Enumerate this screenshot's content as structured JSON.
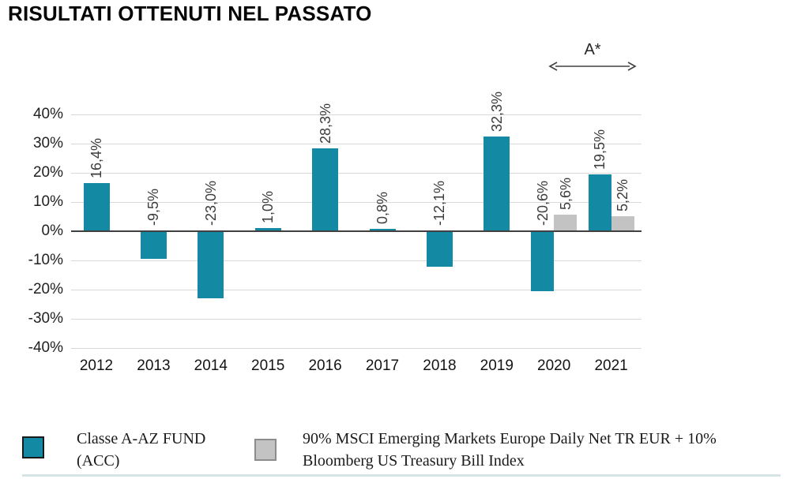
{
  "title": "RISULTATI OTTENUTI NEL PASSATO",
  "annotation": {
    "label": "A*"
  },
  "chart_data": {
    "type": "bar",
    "title": "RISULTATI OTTENUTI NEL PASSATO",
    "categories": [
      "2012",
      "2013",
      "2014",
      "2015",
      "2016",
      "2017",
      "2018",
      "2019",
      "2020",
      "2021"
    ],
    "series": [
      {
        "name": "Classe A-AZ FUND (ACC)",
        "color": "#1489A4",
        "values": [
          16.4,
          -9.5,
          -23.0,
          1.0,
          28.3,
          0.8,
          -12.1,
          32.3,
          -20.6,
          19.5
        ],
        "labels": [
          "16,4%",
          "-9,5%",
          "-23,0%",
          "1,0%",
          "28,3%",
          "0,8%",
          "-12,1%",
          "32,3%",
          "-20,6%",
          "19,5%"
        ]
      },
      {
        "name": "90% MSCI Emerging Markets Europe Daily Net TR EUR + 10% Bloomberg US Treasury Bill Index",
        "color": "#C3C3C3",
        "values": [
          null,
          null,
          null,
          null,
          null,
          null,
          null,
          null,
          5.6,
          5.2
        ],
        "labels": [
          null,
          null,
          null,
          null,
          null,
          null,
          null,
          null,
          "5,6%",
          "5,2%"
        ]
      }
    ],
    "ylim": [
      -40,
      40
    ],
    "yticks": [
      {
        "label": "40%",
        "value": 40
      },
      {
        "label": "30%",
        "value": 30
      },
      {
        "label": "20%",
        "value": 20
      },
      {
        "label": "10%",
        "value": 10
      },
      {
        "label": "0%",
        "value": 0
      },
      {
        "label": "-10%",
        "value": -10
      },
      {
        "label": "-20%",
        "value": -20
      },
      {
        "label": "-30%",
        "value": -30
      },
      {
        "label": "-40%",
        "value": -40
      }
    ],
    "grid": true,
    "legend_position": "bottom",
    "annotation": {
      "label": "A*",
      "span_categories": [
        "2020",
        "2021"
      ]
    }
  },
  "legend": {
    "items": [
      {
        "label": "Classe A-AZ FUND (ACC)",
        "color": "#1489A4"
      },
      {
        "label": "90% MSCI Emerging Markets Europe Daily Net TR EUR + 10% Bloomberg US Treasury Bill Index",
        "color": "#C3C3C3"
      }
    ]
  }
}
